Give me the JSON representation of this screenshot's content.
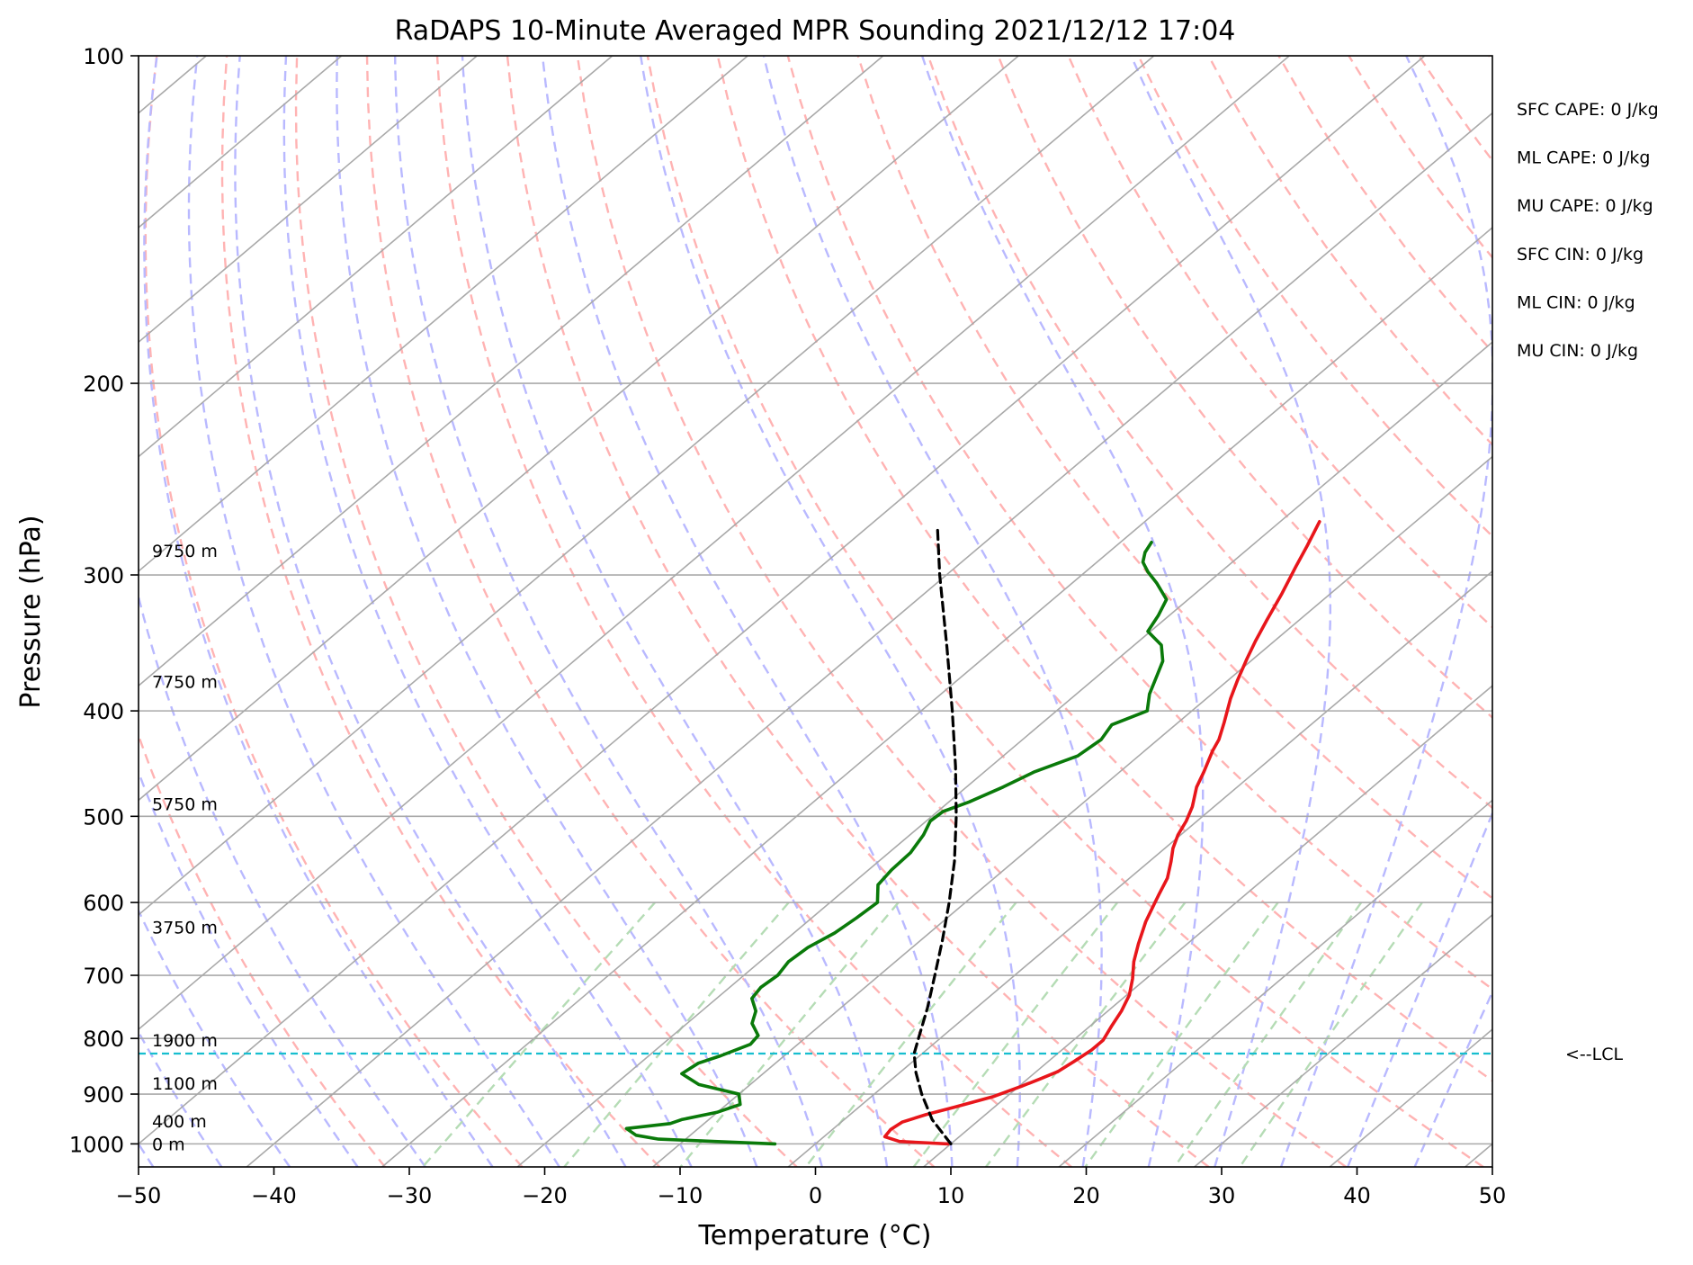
{
  "chart_data": {
    "type": "line",
    "title": "RaDAPS 10-Minute Averaged MPR Sounding 2021/12/12 17:04",
    "xlabel": "Temperature (°C)",
    "ylabel": "Pressure (hPa)",
    "xlim": [
      -50,
      50
    ],
    "ylim": [
      1050,
      100
    ],
    "y_scale": "log",
    "skew": "skew-T log-p",
    "x_ticks": [
      -50,
      -40,
      -30,
      -20,
      -10,
      0,
      10,
      20,
      30,
      40,
      50
    ],
    "x_tick_labels": [
      "−50",
      "−40",
      "−30",
      "−20",
      "−10",
      "0",
      "10",
      "20",
      "30",
      "40",
      "50"
    ],
    "y_ticks": [
      100,
      200,
      300,
      400,
      500,
      600,
      700,
      800,
      900,
      1000
    ],
    "y_tick_labels": [
      "100",
      "200",
      "300",
      "400",
      "500",
      "600",
      "700",
      "800",
      "900",
      "1000"
    ],
    "grid": true,
    "series": [
      {
        "key": "temperature",
        "color": "#e8161b",
        "points": [
          [
            1000,
            9.8
          ],
          [
            995,
            6
          ],
          [
            985,
            4.5
          ],
          [
            970,
            4.3
          ],
          [
            955,
            4.5
          ],
          [
            940,
            5.6
          ],
          [
            925,
            7.1
          ],
          [
            905,
            9
          ],
          [
            885,
            10.2
          ],
          [
            872,
            10.9
          ],
          [
            858,
            11.6
          ],
          [
            840,
            11.9
          ],
          [
            820,
            12.2
          ],
          [
            803,
            12.2
          ],
          [
            780,
            11.6
          ],
          [
            755,
            11
          ],
          [
            730,
            10.2
          ],
          [
            705,
            9
          ],
          [
            680,
            7.6
          ],
          [
            655,
            6.4
          ],
          [
            625,
            5
          ],
          [
            600,
            4
          ],
          [
            590,
            3.6
          ],
          [
            570,
            2.8
          ],
          [
            550,
            1.6
          ],
          [
            535,
            0.6
          ],
          [
            520,
            -0.2
          ],
          [
            505,
            -0.8
          ],
          [
            490,
            -1.6
          ],
          [
            470,
            -3
          ],
          [
            455,
            -3.8
          ],
          [
            435,
            -5
          ],
          [
            425,
            -5.5
          ],
          [
            410,
            -6.6
          ],
          [
            390,
            -8.2
          ],
          [
            375,
            -9.3
          ],
          [
            358,
            -10.5
          ],
          [
            345,
            -11.4
          ],
          [
            330,
            -12.4
          ],
          [
            312,
            -13.6
          ],
          [
            295,
            -14.9
          ],
          [
            282,
            -15.9
          ],
          [
            268,
            -17.1
          ]
        ]
      },
      {
        "key": "dewpoint",
        "color": "#0a7a0a",
        "points": [
          [
            1000,
            -3
          ],
          [
            990,
            -12
          ],
          [
            982,
            -14
          ],
          [
            968,
            -15.3
          ],
          [
            958,
            -12.5
          ],
          [
            950,
            -12
          ],
          [
            935,
            -10
          ],
          [
            920,
            -9
          ],
          [
            900,
            -10
          ],
          [
            882,
            -13.8
          ],
          [
            862,
            -16
          ],
          [
            843,
            -15.7
          ],
          [
            830,
            -14.7
          ],
          [
            810,
            -13.5
          ],
          [
            795,
            -13.7
          ],
          [
            775,
            -15.2
          ],
          [
            755,
            -16
          ],
          [
            735,
            -17.4
          ],
          [
            718,
            -17.7
          ],
          [
            700,
            -17.5
          ],
          [
            680,
            -17.9
          ],
          [
            660,
            -17.7
          ],
          [
            640,
            -17
          ],
          [
            620,
            -16.7
          ],
          [
            600,
            -16.5
          ],
          [
            578,
            -18
          ],
          [
            560,
            -18.3
          ],
          [
            540,
            -18.4
          ],
          [
            520,
            -19
          ],
          [
            505,
            -19.7
          ],
          [
            495,
            -19.6
          ],
          [
            485,
            -18.5
          ],
          [
            470,
            -17.3
          ],
          [
            455,
            -16.3
          ],
          [
            440,
            -14.5
          ],
          [
            425,
            -14.2
          ],
          [
            412,
            -14.7
          ],
          [
            400,
            -13.3
          ],
          [
            386,
            -14.6
          ],
          [
            372,
            -15.6
          ],
          [
            360,
            -16.5
          ],
          [
            348,
            -18
          ],
          [
            338,
            -20.2
          ],
          [
            327,
            -20.8
          ],
          [
            316,
            -21.6
          ],
          [
            305,
            -23.8
          ],
          [
            298,
            -25.4
          ],
          [
            292,
            -26.6
          ],
          [
            286,
            -27.3
          ],
          [
            280,
            -27.7
          ]
        ]
      },
      {
        "key": "parcel-profile",
        "color": "#000000",
        "points": [
          [
            1000,
            10
          ],
          [
            950,
            6.5
          ],
          [
            900,
            3.5
          ],
          [
            860,
            1.2
          ],
          [
            826,
            -0.6
          ],
          [
            800,
            -1.6
          ],
          [
            750,
            -3.6
          ],
          [
            700,
            -5.9
          ],
          [
            650,
            -8.4
          ],
          [
            600,
            -11.2
          ],
          [
            550,
            -14.4
          ],
          [
            500,
            -18.2
          ],
          [
            450,
            -22.6
          ],
          [
            400,
            -27.7
          ],
          [
            350,
            -33.6
          ],
          [
            300,
            -40.5
          ],
          [
            272,
            -44.7
          ]
        ]
      }
    ],
    "lcl_pressure": 826,
    "lcl_color": "#17becf",
    "isotherm_color": "#a9a9a9",
    "dry_adiabat_color": "#ffb3b3",
    "moist_adiabat_color": "#b9b9ff",
    "mixing_ratio_color": "#b5dcb5",
    "height_labels": [
      {
        "label": "0 m",
        "pressure": 1000
      },
      {
        "label": "400 m",
        "pressure": 953
      },
      {
        "label": "1100 m",
        "pressure": 880
      },
      {
        "label": "1900 m",
        "pressure": 803
      },
      {
        "label": "3750 m",
        "pressure": 632
      },
      {
        "label": "5750 m",
        "pressure": 487
      },
      {
        "label": "7750 m",
        "pressure": 376
      },
      {
        "label": "9750 m",
        "pressure": 285
      }
    ],
    "lcl_label": "<--LCL",
    "stats": [
      "SFC CAPE: 0 J/kg",
      "ML CAPE: 0 J/kg",
      "MU CAPE: 0 J/kg",
      "SFC CIN: 0 J/kg",
      "ML CIN: 0 J/kg",
      "MU CIN: 0 J/kg"
    ]
  }
}
